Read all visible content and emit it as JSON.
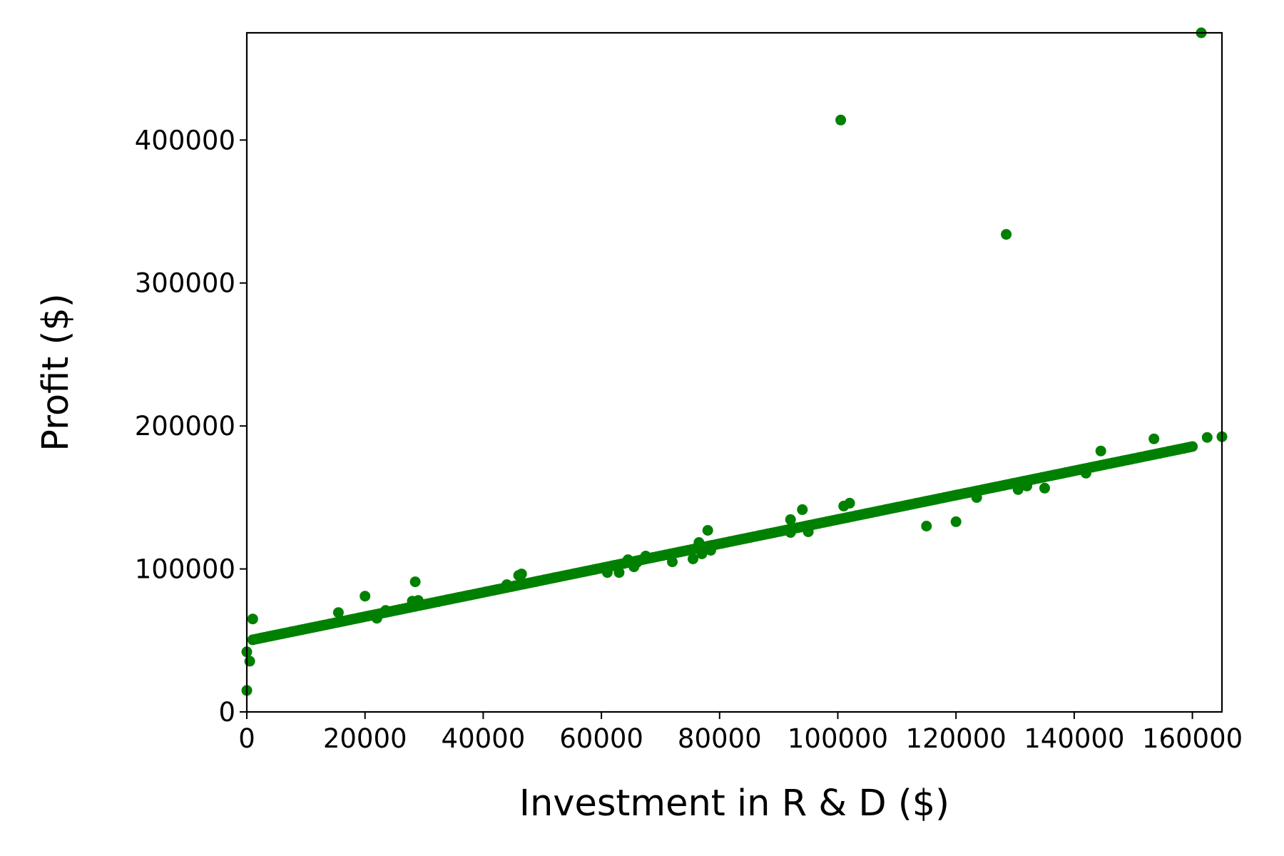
{
  "chart_data": {
    "type": "scatter",
    "title": "",
    "xlabel": "Investment in R & D ($)",
    "ylabel": "Profit ($)",
    "xlim": [
      0,
      165000
    ],
    "ylim": [
      0,
      475000
    ],
    "x_ticks": [
      0,
      20000,
      40000,
      60000,
      80000,
      100000,
      120000,
      140000,
      160000
    ],
    "x_tick_labels": [
      "0",
      "20000",
      "40000",
      "60000",
      "80000",
      "100000",
      "120000",
      "140000",
      "160000"
    ],
    "y_ticks": [
      0,
      100000,
      200000,
      300000,
      400000
    ],
    "y_tick_labels": [
      "0",
      "100000",
      "200000",
      "300000",
      "400000"
    ],
    "grid": false,
    "color": "#008000",
    "series": [
      {
        "points": [
          [
            0,
            15000
          ],
          [
            0,
            42000
          ],
          [
            500,
            35500
          ],
          [
            1000,
            65000
          ],
          [
            15500,
            69500
          ],
          [
            20000,
            81000
          ],
          [
            22000,
            65500
          ],
          [
            23500,
            71000
          ],
          [
            28000,
            77500
          ],
          [
            28500,
            91000
          ],
          [
            29000,
            78000
          ],
          [
            44000,
            89000
          ],
          [
            46000,
            95500
          ],
          [
            46500,
            96500
          ],
          [
            61000,
            97500
          ],
          [
            63000,
            97500
          ],
          [
            64500,
            106500
          ],
          [
            65500,
            101500
          ],
          [
            66000,
            104500
          ],
          [
            67500,
            109000
          ],
          [
            72000,
            105000
          ],
          [
            75500,
            107000
          ],
          [
            76500,
            116000
          ],
          [
            76500,
            118500
          ],
          [
            77000,
            110500
          ],
          [
            78000,
            127000
          ],
          [
            78500,
            113000
          ],
          [
            92000,
            125500
          ],
          [
            92000,
            134500
          ],
          [
            94000,
            141500
          ],
          [
            95000,
            126000
          ],
          [
            100500,
            414000
          ],
          [
            101000,
            144000
          ],
          [
            102000,
            146000
          ],
          [
            115000,
            130000
          ],
          [
            120000,
            133000
          ],
          [
            123500,
            150000
          ],
          [
            128500,
            334000
          ],
          [
            130500,
            155500
          ],
          [
            132000,
            158000
          ],
          [
            135000,
            156500
          ],
          [
            142000,
            167000
          ],
          [
            144500,
            182500
          ],
          [
            153500,
            191000
          ],
          [
            161500,
            475000
          ],
          [
            162500,
            192000
          ],
          [
            165000,
            192500
          ]
        ],
        "fit_points": {
          "x_start": 1000,
          "x_end": 160000,
          "count": 320,
          "slope": 0.85,
          "intercept": 49600
        }
      }
    ]
  }
}
